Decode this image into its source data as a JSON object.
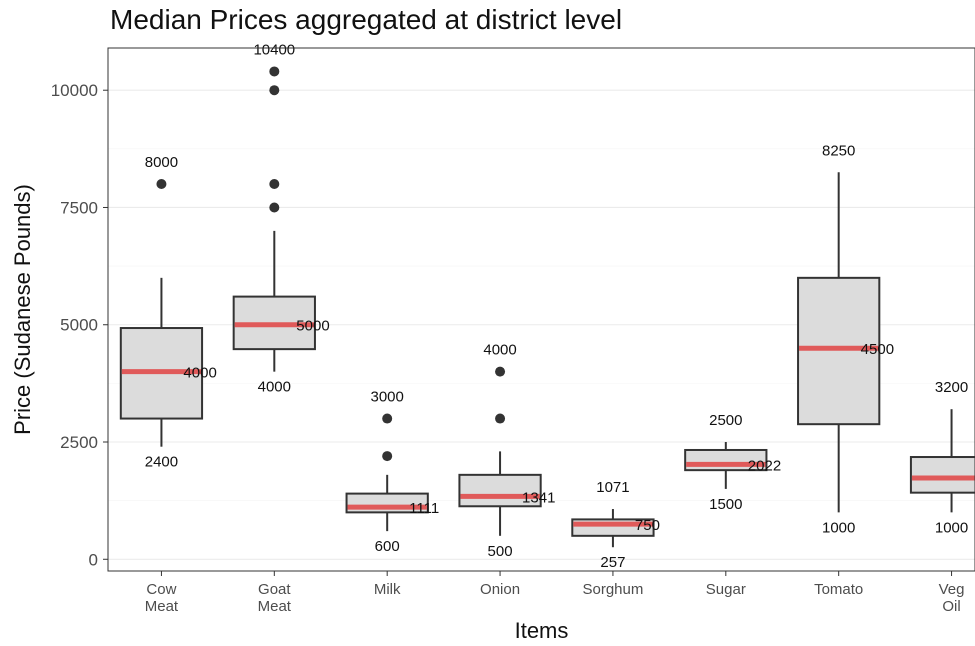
{
  "chart_data": {
    "type": "box",
    "title": "Median Prices aggregated at district level",
    "xlabel": "Items",
    "ylabel": "Price (Sudanese Pounds)",
    "ylim": [
      -250,
      10900
    ],
    "yticks": [
      0,
      2500,
      5000,
      7500,
      10000
    ],
    "ytick_labels": [
      "0",
      "2500",
      "5000",
      "7500",
      "10000"
    ],
    "grid": true,
    "colors": {
      "box_fill": "#dcdcdc",
      "box_stroke": "#333333",
      "median": "#e05a5a",
      "outlier": "#333333"
    },
    "categories": [
      "Cow Meat",
      "Goat Meat",
      "Milk",
      "Onion",
      "Sorghum",
      "Sugar",
      "Tomato",
      "Veg Oil"
    ],
    "boxes": [
      {
        "category": "Cow Meat",
        "q1": 3000,
        "median": 4000,
        "q3": 4930,
        "whisker_low": 2400,
        "whisker_high": 6000,
        "outliers": [
          8000
        ],
        "labels": {
          "max": "8000",
          "median": "4000",
          "min": "2400"
        }
      },
      {
        "category": "Goat Meat",
        "q1": 4480,
        "median": 5000,
        "q3": 5600,
        "whisker_low": 4000,
        "whisker_high": 7000,
        "outliers": [
          7500,
          8000,
          10000,
          10400
        ],
        "labels": {
          "max": "10400",
          "median": "5000",
          "min": "4000"
        }
      },
      {
        "category": "Milk",
        "q1": 1000,
        "median": 1111,
        "q3": 1400,
        "whisker_low": 600,
        "whisker_high": 1800,
        "outliers": [
          2200,
          3000
        ],
        "labels": {
          "max": "3000",
          "median": "1111",
          "min": "600"
        }
      },
      {
        "category": "Onion",
        "q1": 1130,
        "median": 1341,
        "q3": 1800,
        "whisker_low": 500,
        "whisker_high": 2300,
        "outliers": [
          3000,
          4000
        ],
        "labels": {
          "max": "4000",
          "median": "1341",
          "min": "500"
        }
      },
      {
        "category": "Sorghum",
        "q1": 500,
        "median": 750,
        "q3": 850,
        "whisker_low": 257,
        "whisker_high": 1071,
        "outliers": [],
        "labels": {
          "max": "1071",
          "median": "750",
          "min": "257"
        }
      },
      {
        "category": "Sugar",
        "q1": 1900,
        "median": 2022,
        "q3": 2330,
        "whisker_low": 1500,
        "whisker_high": 2500,
        "outliers": [],
        "labels": {
          "max": "2500",
          "median": "2022",
          "min": "1500"
        }
      },
      {
        "category": "Tomato",
        "q1": 2880,
        "median": 4500,
        "q3": 6000,
        "whisker_low": 1000,
        "whisker_high": 8250,
        "outliers": [],
        "labels": {
          "max": "8250",
          "median": "4500",
          "min": "1000"
        }
      },
      {
        "category": "Veg Oil",
        "q1": 1420,
        "median": 1734,
        "q3": 2180,
        "whisker_low": 1000,
        "whisker_high": 3200,
        "outliers": [],
        "labels": {
          "max": "3200",
          "median": "1734",
          "min": "1000"
        }
      }
    ]
  }
}
